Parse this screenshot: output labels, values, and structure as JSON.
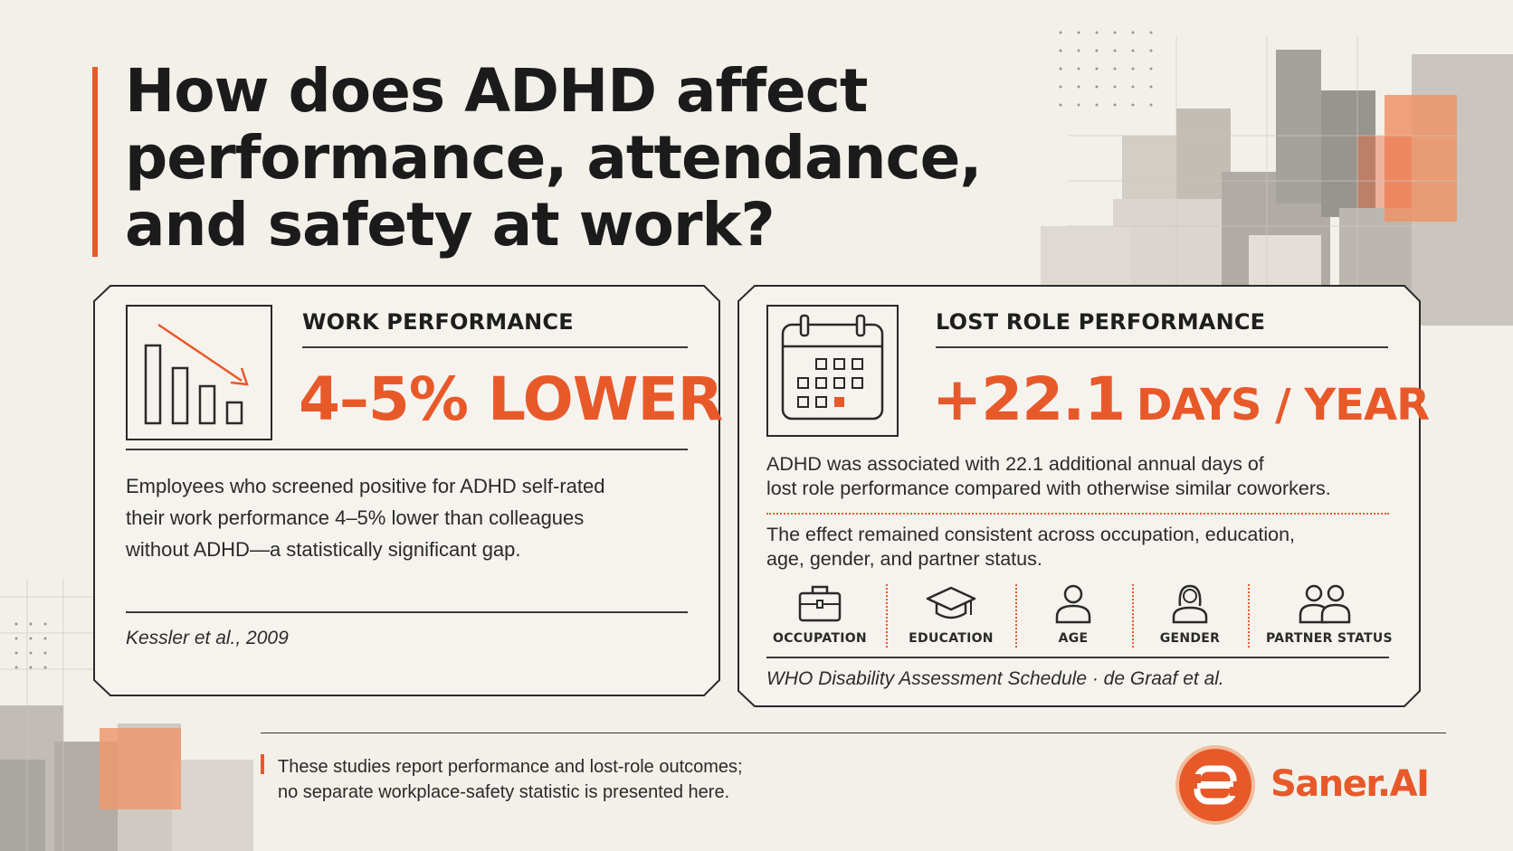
{
  "title": {
    "lines": [
      "How does ADHD affect",
      "performance, attendance,",
      "and safety at work?"
    ]
  },
  "colors": {
    "accent": "#e8592a",
    "text": "#1e1e1e",
    "background": "#f3f0ea"
  },
  "card_left": {
    "icon": "declining-bar-chart-icon",
    "heading": "WORK PERFORMANCE",
    "stat": "4–5% LOWER",
    "body_lines": [
      "Employees who screened positive for ADHD self-rated",
      "their work performance 4–5% lower than colleagues",
      "without ADHD—a statistically significant gap."
    ],
    "source": "Kessler et al., 2009"
  },
  "card_right": {
    "icon": "calendar-icon",
    "heading": "LOST ROLE PERFORMANCE",
    "stat_number": "+22.1",
    "stat_unit": "DAYS / YEAR",
    "body_lines": [
      "ADHD was associated with 22.1 additional annual days of",
      "lost role performance compared with otherwise similar coworkers."
    ],
    "consistency_lines": [
      "The effect remained consistent across occupation, education,",
      "age, gender, and partner status."
    ],
    "factors": [
      {
        "label": "OCCUPATION",
        "icon": "briefcase-icon"
      },
      {
        "label": "EDUCATION",
        "icon": "graduation-cap-icon"
      },
      {
        "label": "AGE",
        "icon": "person-icon"
      },
      {
        "label": "GENDER",
        "icon": "woman-icon"
      },
      {
        "label": "PARTNER STATUS",
        "icon": "couple-icon"
      }
    ],
    "source": "WHO Disability Assessment Schedule · de Graaf et al."
  },
  "footer": {
    "note_lines": [
      "These studies report performance and lost-role outcomes;",
      "no separate workplace-safety statistic is presented here."
    ],
    "brand": {
      "logo_letter": "S",
      "name": "Saner.AI"
    }
  }
}
